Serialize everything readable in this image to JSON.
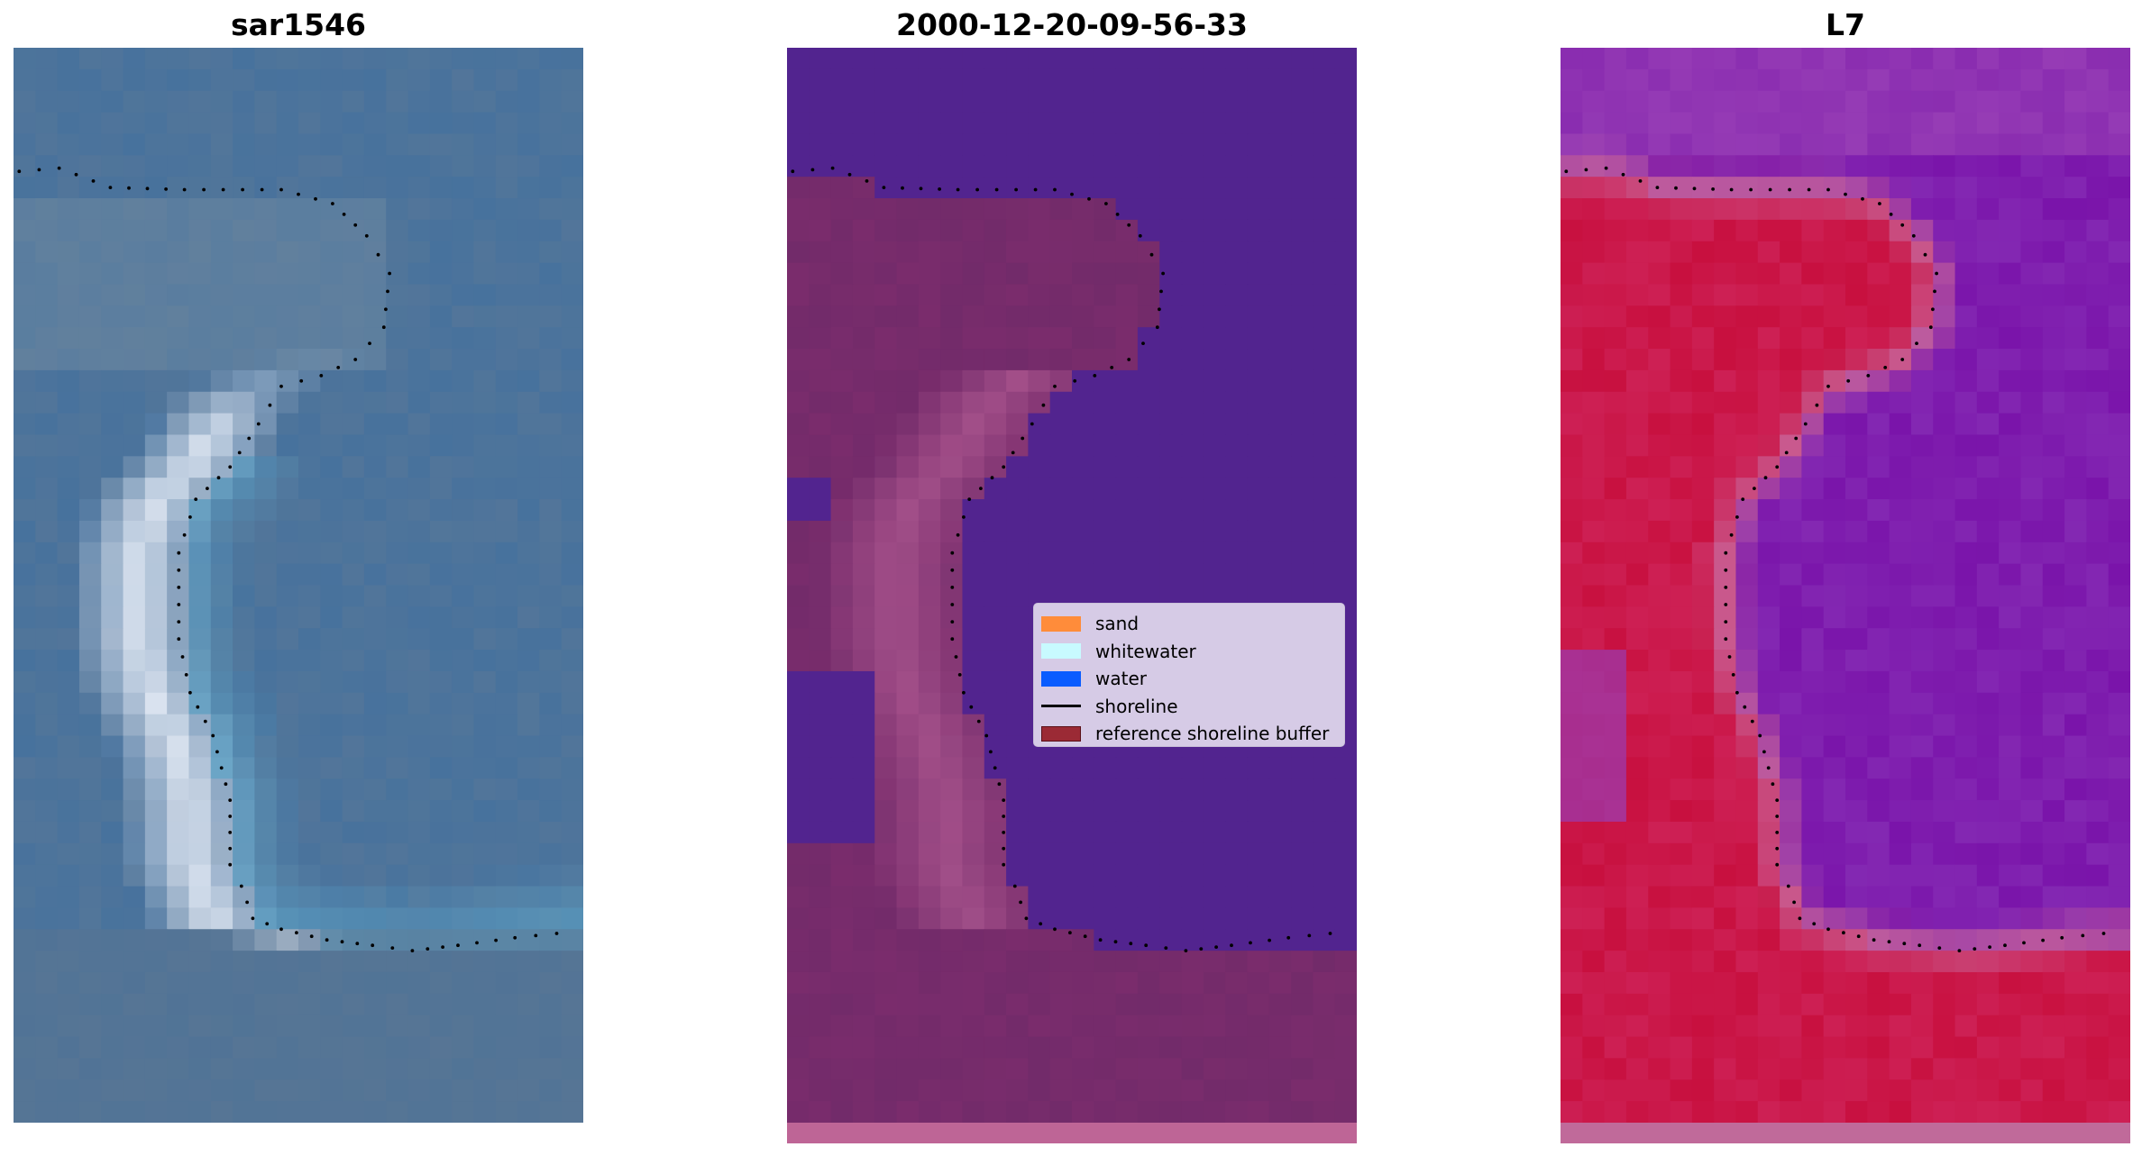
{
  "panels": [
    {
      "id": "rgb",
      "title": "sar1546"
    },
    {
      "id": "classified",
      "title": "2000-12-20-09-56-33"
    },
    {
      "id": "index",
      "title": "L7"
    }
  ],
  "legend": {
    "items": [
      {
        "label": "sand",
        "kind": "patch",
        "color": "#ff8c3a"
      },
      {
        "label": "whitewater",
        "kind": "patch",
        "color": "#c8faff"
      },
      {
        "label": "water",
        "kind": "patch",
        "color": "#0a5cff"
      },
      {
        "label": "shoreline",
        "kind": "line",
        "color": "#000000"
      },
      {
        "label": "reference shoreline buffer",
        "kind": "patch",
        "color": "#9b2a35"
      }
    ]
  },
  "colors": {
    "rgb_water": "#3f6f9f",
    "rgb_sand": "#e8eef8",
    "rgb_turquoise": "#5fa6c9",
    "classified_water": "#52248f",
    "classified_land": "#7a2c6c",
    "classified_land_light": "#b05a92",
    "classified_strip": "#be6596",
    "index_water": "#7a14aa",
    "index_land": "#c8103f",
    "index_transition": "#c8659a",
    "index_strip": "#c06a9a",
    "shoreline_dots": "#000000"
  }
}
